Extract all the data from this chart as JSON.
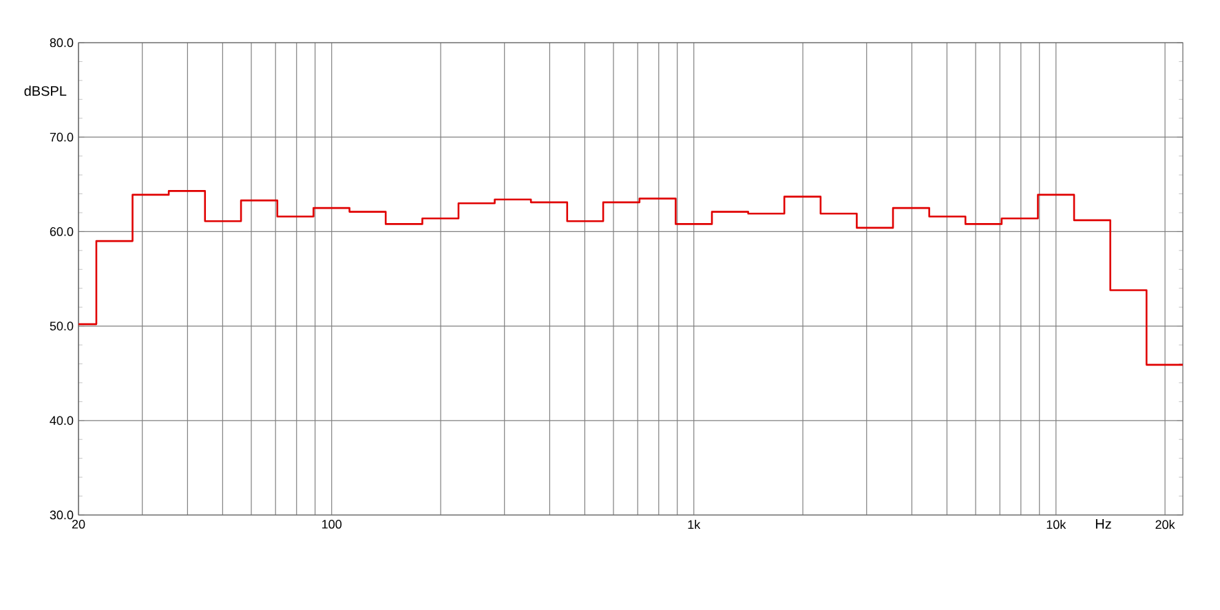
{
  "chart_data": {
    "type": "step",
    "xlabel": "Hz",
    "ylabel": "dBSPL",
    "log": "x",
    "grid": true,
    "x": [
      20,
      22.4,
      28.2,
      35.5,
      44.7,
      56.2,
      70.8,
      89.1,
      112,
      141,
      178,
      224,
      282,
      355,
      447,
      562,
      708,
      891,
      1122,
      1413,
      1778,
      2239,
      2818,
      3548,
      4467,
      5623,
      7079,
      8913,
      11220,
      14125,
      17783,
      22400
    ],
    "series": [
      {
        "color": "#e00000",
        "values": [
          50.2,
          59.0,
          63.9,
          64.3,
          61.1,
          63.3,
          61.6,
          62.5,
          62.1,
          60.8,
          61.4,
          63.0,
          63.4,
          63.1,
          61.1,
          63.1,
          63.5,
          60.8,
          62.1,
          61.9,
          63.7,
          61.9,
          60.4,
          62.5,
          61.6,
          60.8,
          61.4,
          63.9,
          61.2,
          53.8,
          45.9,
          45.9
        ]
      }
    ],
    "xlim": [
      20,
      22400
    ],
    "xticks": [
      20,
      {
        "value": 30,
        "label": null
      },
      {
        "value": 40,
        "label": null
      },
      {
        "value": 50,
        "label": null
      },
      {
        "value": 60,
        "label": null
      },
      {
        "value": 70,
        "label": null
      },
      {
        "value": 80,
        "label": null
      },
      {
        "value": 90,
        "label": null
      },
      100,
      {
        "value": 200,
        "label": null
      },
      {
        "value": 300,
        "label": null
      },
      {
        "value": 400,
        "label": null
      },
      {
        "value": 500,
        "label": null
      },
      {
        "value": 600,
        "label": null
      },
      {
        "value": 700,
        "label": null
      },
      {
        "value": 800,
        "label": null
      },
      {
        "value": 900,
        "label": null
      },
      {
        "value": 1000,
        "label": "1k"
      },
      {
        "value": 2000,
        "label": null
      },
      {
        "value": 3000,
        "label": null
      },
      {
        "value": 4000,
        "label": null
      },
      {
        "value": 5000,
        "label": null
      },
      {
        "value": 6000,
        "label": null
      },
      {
        "value": 7000,
        "label": null
      },
      {
        "value": 8000,
        "label": null
      },
      {
        "value": 9000,
        "label": null
      },
      {
        "value": 10000,
        "label": "10k"
      },
      {
        "value": 20000,
        "label": "20k"
      }
    ],
    "ylim": [
      30,
      80
    ],
    "yticks": [
      {
        "value": 30,
        "label": "30.0"
      },
      {
        "value": 40,
        "label": "40.0"
      },
      {
        "value": 50,
        "label": "50.0"
      },
      {
        "value": 60,
        "label": "60.0"
      },
      {
        "value": 70,
        "label": "70.0"
      },
      {
        "value": 80,
        "label": "80.0"
      }
    ]
  }
}
